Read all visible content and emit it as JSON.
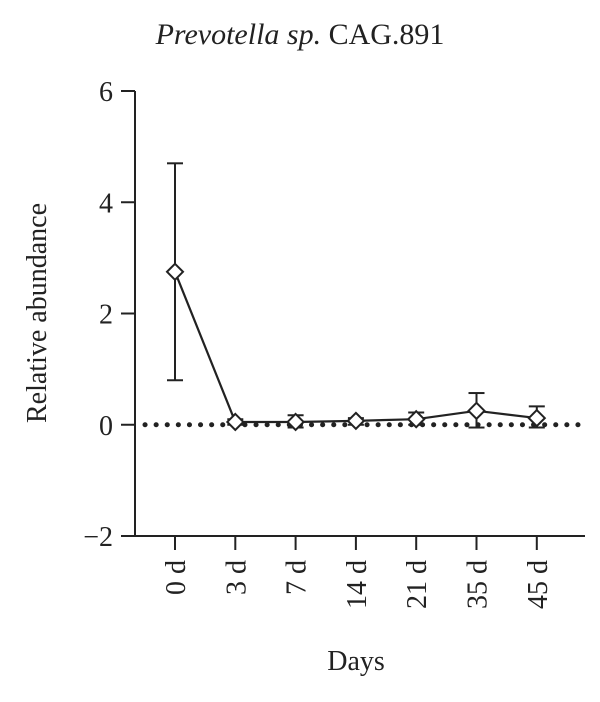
{
  "chart_data": {
    "type": "line",
    "title_italic": "Prevotella sp.",
    "title_rest": " CAG.891",
    "xlabel": "Days",
    "ylabel": "Relative abundance",
    "categories": [
      "0 d",
      "3 d",
      "7 d",
      "14 d",
      "21 d",
      "35 d",
      "45 d"
    ],
    "values": [
      2.75,
      0.05,
      0.05,
      0.07,
      0.1,
      0.25,
      0.12
    ],
    "error_low": [
      0.8,
      0.0,
      -0.05,
      0.0,
      0.0,
      -0.05,
      -0.05
    ],
    "error_high": [
      4.7,
      0.1,
      0.17,
      0.12,
      0.22,
      0.57,
      0.33
    ],
    "reference_line": 0,
    "ylim": [
      -2,
      6
    ],
    "yticks": [
      "−2",
      "0",
      "2",
      "4",
      "6"
    ],
    "ytick_values": [
      -2,
      0,
      2,
      4,
      6
    ],
    "marker": "diamond-open",
    "color": "#222222",
    "grid": false
  }
}
